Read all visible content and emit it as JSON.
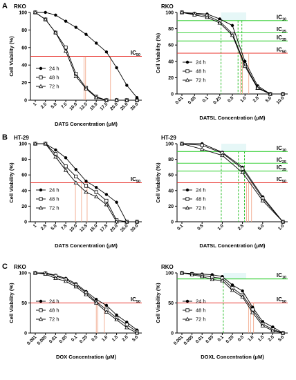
{
  "colors": {
    "ic50_line": "#e8302a",
    "ic_green": "#3ad13a",
    "drop": "#f0a080",
    "green_drop": "#2bbf2b",
    "series": "#000000",
    "shade": "#d6f2f2"
  },
  "series_legend": [
    "24 h",
    "48 h",
    "72 h"
  ],
  "markers": {
    "24 h": "filled-circle",
    "48 h": "open-square",
    "72 h": "open-triangle"
  },
  "chart_data": [
    {
      "type": "line",
      "row_label": "A",
      "cell_line": "RKO",
      "xlabel": "DATS Concentration (μM)",
      "ylabel": "Cell Viability (%)",
      "categories": [
        "1",
        "2.5",
        "5.0",
        "7.5",
        "10.0",
        "12.5",
        "15.0",
        "17.5",
        "20.0",
        "25.0",
        "30.0"
      ],
      "ylim": [
        0,
        100
      ],
      "yticks": [
        0,
        20,
        40,
        60,
        80,
        100
      ],
      "series": [
        {
          "name": "24 h",
          "values": [
            100,
            100,
            97,
            90,
            83,
            75,
            65,
            55,
            37,
            17,
            3
          ]
        },
        {
          "name": "48 h",
          "values": [
            100,
            92,
            77,
            60,
            30,
            14,
            4,
            0,
            0,
            0,
            0
          ]
        },
        {
          "name": "72 h",
          "values": [
            100,
            92,
            77,
            56,
            27,
            13,
            3,
            0,
            0,
            0,
            0
          ]
        }
      ],
      "ic_labels": [
        {
          "text": "IC",
          "sub": "50",
          "value": 50,
          "color": "red"
        }
      ],
      "drop_x": [
        4.8,
        4.95,
        7.4
      ]
    },
    {
      "type": "line",
      "row_label": "",
      "cell_line": "RKO",
      "xlabel": "DATSL Concentration (μM)",
      "ylabel": "Cell Viability (%)",
      "categories": [
        "0.01",
        "0.05",
        "0.1",
        "0.25",
        "0.5",
        "1.0",
        "2.5",
        "5.0",
        "10.0"
      ],
      "ylim": [
        0,
        100
      ],
      "yticks": [
        0,
        20,
        40,
        60,
        80,
        100
      ],
      "series": [
        {
          "name": "24 h",
          "values": [
            100,
            99,
            98,
            92,
            84,
            40,
            10,
            0,
            0
          ]
        },
        {
          "name": "48 h",
          "values": [
            100,
            98,
            96,
            89,
            74,
            36,
            8,
            0,
            0
          ]
        },
        {
          "name": "72 h",
          "values": [
            100,
            97,
            94,
            87,
            72,
            34,
            7,
            0,
            0
          ]
        }
      ],
      "ic_labels": [
        {
          "text": "IC",
          "sub": "10",
          "value": 90,
          "color": "green"
        },
        {
          "text": "IC",
          "sub": "25",
          "value": 75,
          "color": "green"
        },
        {
          "text": "IC",
          "sub": "35",
          "value": 65,
          "color": "green"
        },
        {
          "text": "IC",
          "sub": "50",
          "value": 50,
          "color": "red"
        }
      ],
      "green_drop_x": [
        3.1,
        4.45,
        4.75
      ],
      "drop_x": [
        4.65,
        4.8,
        5.3
      ]
    },
    {
      "type": "line",
      "row_label": "B",
      "cell_line": "HT-29",
      "xlabel": "DATS Concentration (μM)",
      "ylabel": "Cell Viability (%)",
      "categories": [
        "1",
        "2.5",
        "5.0",
        "7.5",
        "10.0",
        "12.5",
        "15.0",
        "17.5",
        "20.0",
        "25.0",
        "30.0"
      ],
      "ylim": [
        0,
        100
      ],
      "yticks": [
        0,
        20,
        40,
        60,
        80,
        100
      ],
      "series": [
        {
          "name": "24 h",
          "values": [
            100,
            100,
            92,
            82,
            67,
            52,
            44,
            35,
            25,
            0,
            0
          ]
        },
        {
          "name": "48 h",
          "values": [
            100,
            100,
            87,
            71,
            58,
            46,
            38,
            27,
            2,
            0,
            0
          ]
        },
        {
          "name": "72 h",
          "values": [
            100,
            100,
            83,
            66,
            50,
            38,
            32,
            22,
            0,
            0,
            0
          ]
        }
      ],
      "ic_labels": [
        {
          "text": "IC",
          "sub": "50",
          "value": 50,
          "color": "red"
        }
      ],
      "drop_x": [
        3.95,
        4.55,
        5.1
      ]
    },
    {
      "type": "line",
      "row_label": "",
      "cell_line": "HT-29",
      "xlabel": "DATSL Concentration (μM)",
      "ylabel": "Cell Viability (%)",
      "categories": [
        "0.1",
        "0.5",
        "1.0",
        "2.5",
        "5.0",
        "1.0"
      ],
      "ylim": [
        0,
        100
      ],
      "yticks": [
        0,
        20,
        40,
        60,
        80,
        100
      ],
      "series": [
        {
          "name": "24 h",
          "values": [
            100,
            100,
            89,
            70,
            32,
            0
          ]
        },
        {
          "name": "48 h",
          "values": [
            100,
            98,
            88,
            68,
            30,
            0
          ]
        },
        {
          "name": "72 h",
          "values": [
            100,
            93,
            85,
            63,
            27,
            0
          ]
        }
      ],
      "ic_labels": [
        {
          "text": "IC",
          "sub": "10",
          "value": 90,
          "color": "green"
        },
        {
          "text": "IC",
          "sub": "25",
          "value": 75,
          "color": "green"
        },
        {
          "text": "IC",
          "sub": "35",
          "value": 65,
          "color": "green"
        },
        {
          "text": "IC",
          "sub": "50",
          "value": 50,
          "color": "red"
        }
      ],
      "green_drop_x": [
        1.95,
        2.8,
        3.1
      ],
      "drop_x": [
        3.2,
        3.3,
        3.45
      ]
    },
    {
      "type": "line",
      "row_label": "C",
      "cell_line": "RKO",
      "xlabel": "DOX Concentration (μM)",
      "ylabel": "Cell Viability (%)",
      "categories": [
        "0.001",
        "0.005",
        "0.01",
        "0.05",
        "0.1",
        "0.25",
        "0.5",
        "1.0",
        "1.5",
        "2.5",
        "5.0"
      ],
      "ylim": [
        0,
        100
      ],
      "yticks": [
        0,
        50,
        100
      ],
      "series": [
        {
          "name": "24 h",
          "values": [
            100,
            100,
            96,
            91,
            82,
            69,
            56,
            46,
            30,
            18,
            5
          ]
        },
        {
          "name": "48 h",
          "values": [
            100,
            99,
            95,
            89,
            80,
            67,
            52,
            39,
            25,
            14,
            2
          ]
        },
        {
          "name": "72 h",
          "values": [
            100,
            98,
            91,
            86,
            77,
            64,
            50,
            35,
            22,
            9,
            0
          ]
        }
      ],
      "ic_labels": [
        {
          "text": "IC",
          "sub": "50",
          "value": 50,
          "color": "red"
        }
      ],
      "drop_x": [
        6.0,
        6.15,
        6.8
      ]
    },
    {
      "type": "line",
      "row_label": "",
      "cell_line": "RKO",
      "xlabel": "DOXL Concentration (μM)",
      "ylabel": "Cell Viability (%)",
      "categories": [
        "0.001",
        "0.005",
        "0.01",
        "0.05",
        "0.1",
        "0.25",
        "0.5",
        "1.0",
        "1.5",
        "2.5",
        "5.0"
      ],
      "ylim": [
        0,
        100
      ],
      "yticks": [
        0,
        50,
        100
      ],
      "series": [
        {
          "name": "24 h",
          "values": [
            100,
            99,
            98,
            97,
            94,
            80,
            70,
            43,
            19,
            10,
            0
          ]
        },
        {
          "name": "48 h",
          "values": [
            100,
            98,
            96,
            93,
            91,
            75,
            63,
            39,
            15,
            6,
            0
          ]
        },
        {
          "name": "72 h",
          "values": [
            100,
            97,
            94,
            89,
            87,
            71,
            60,
            34,
            12,
            4,
            0
          ]
        }
      ],
      "ic_labels": [
        {
          "text": "IC",
          "sub": "10",
          "value": 90,
          "color": "green"
        },
        {
          "text": "IC",
          "sub": "50",
          "value": 50,
          "color": "red"
        }
      ],
      "green_drop_x": [
        4.1
      ],
      "drop_x": [
        6.6,
        6.8,
        7.1
      ]
    }
  ]
}
